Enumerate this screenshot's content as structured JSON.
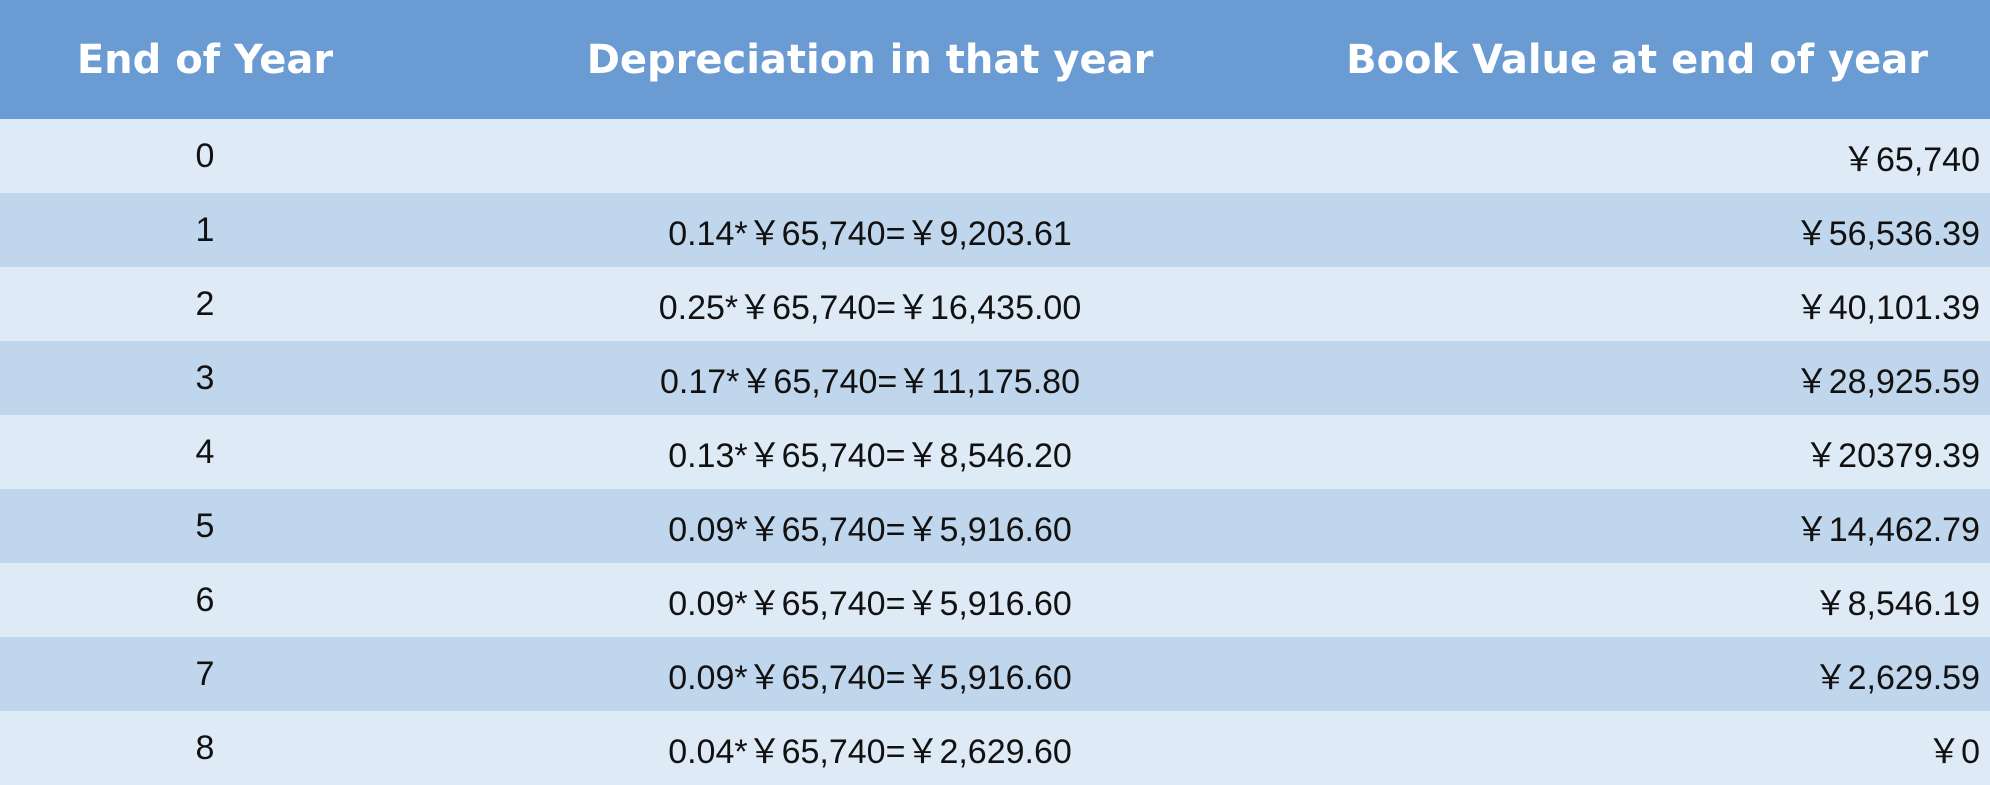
{
  "table": {
    "headers": [
      "End of Year",
      "Depreciation in that year",
      "Book Value at end of year"
    ],
    "rows": [
      {
        "year": "0",
        "depreciation": "",
        "book_value": "￥65,740"
      },
      {
        "year": "1",
        "depreciation": "0.14*￥65,740=￥9,203.61",
        "book_value": "￥56,536.39"
      },
      {
        "year": "2",
        "depreciation": "0.25*￥65,740=￥16,435.00",
        "book_value": "￥40,101.39"
      },
      {
        "year": "3",
        "depreciation": "0.17*￥65,740=￥11,175.80",
        "book_value": "￥28,925.59"
      },
      {
        "year": "4",
        "depreciation": "0.13*￥65,740=￥8,546.20",
        "book_value": "￥20379.39"
      },
      {
        "year": "5",
        "depreciation": "0.09*￥65,740=￥5,916.60",
        "book_value": "￥14,462.79"
      },
      {
        "year": "6",
        "depreciation": "0.09*￥65,740=￥5,916.60",
        "book_value": "￥8,546.19"
      },
      {
        "year": "7",
        "depreciation": "0.09*￥65,740=￥5,916.60",
        "book_value": "￥2,629.59"
      },
      {
        "year": "8",
        "depreciation": "0.04*￥65,740=￥2,629.60",
        "book_value": "￥0"
      }
    ]
  },
  "colors": {
    "header_bg": "#6a9bd2",
    "row_light": "#deebf7",
    "row_dark": "#c0d6ec",
    "header_text": "#ffffff",
    "body_text": "#111111"
  }
}
